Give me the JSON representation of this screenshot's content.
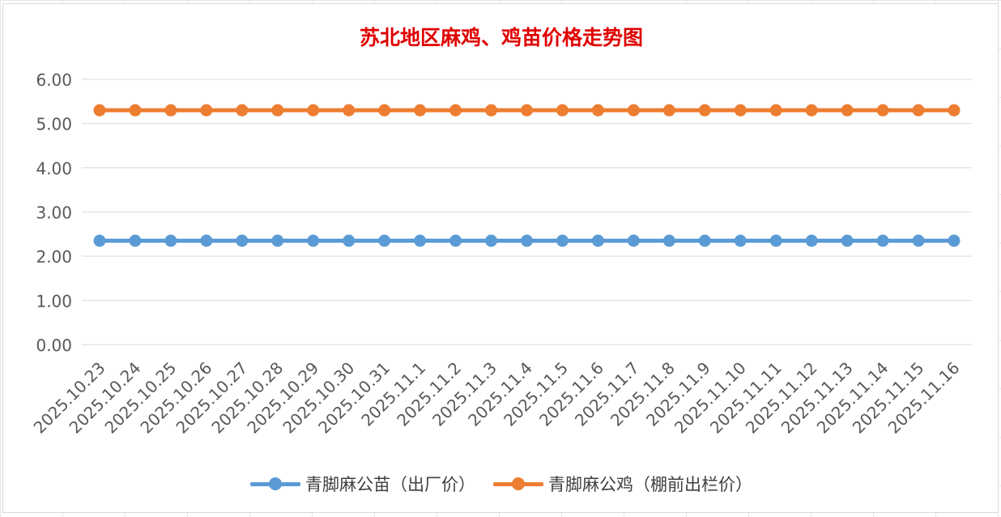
{
  "chart_data": {
    "type": "line",
    "title": "苏北地区麻鸡、鸡苗价格走势图",
    "categories": [
      "2025.10.23",
      "2025.10.24",
      "2025.10.25",
      "2025.10.26",
      "2025.10.27",
      "2025.10.28",
      "2025.10.29",
      "2025.10.30",
      "2025.10.31",
      "2025.11.1",
      "2025.11.2",
      "2025.11.3",
      "2025.11.4",
      "2025.11.5",
      "2025.11.6",
      "2025.11.7",
      "2025.11.8",
      "2025.11.9",
      "2025.11.10",
      "2025.11.11",
      "2025.11.12",
      "2025.11.13",
      "2025.11.14",
      "2025.11.15",
      "2025.11.16"
    ],
    "series": [
      {
        "name": "青脚麻公苗（出厂价）",
        "color": "#5b9bd5",
        "values": [
          2.35,
          2.35,
          2.35,
          2.35,
          2.35,
          2.35,
          2.35,
          2.35,
          2.35,
          2.35,
          2.35,
          2.35,
          2.35,
          2.35,
          2.35,
          2.35,
          2.35,
          2.35,
          2.35,
          2.35,
          2.35,
          2.35,
          2.35,
          2.35,
          2.35
        ]
      },
      {
        "name": "青脚麻公鸡（棚前出栏价）",
        "color": "#ed7d31",
        "values": [
          5.3,
          5.3,
          5.3,
          5.3,
          5.3,
          5.3,
          5.3,
          5.3,
          5.3,
          5.3,
          5.3,
          5.3,
          5.3,
          5.3,
          5.3,
          5.3,
          5.3,
          5.3,
          5.3,
          5.3,
          5.3,
          5.3,
          5.3,
          5.3,
          5.3
        ]
      }
    ],
    "ylim": [
      0,
      6
    ],
    "yticks": [
      "0.00",
      "1.00",
      "2.00",
      "3.00",
      "4.00",
      "5.00",
      "6.00"
    ],
    "xlabel": "",
    "ylabel": "",
    "grid": true,
    "legend_position": "bottom"
  }
}
